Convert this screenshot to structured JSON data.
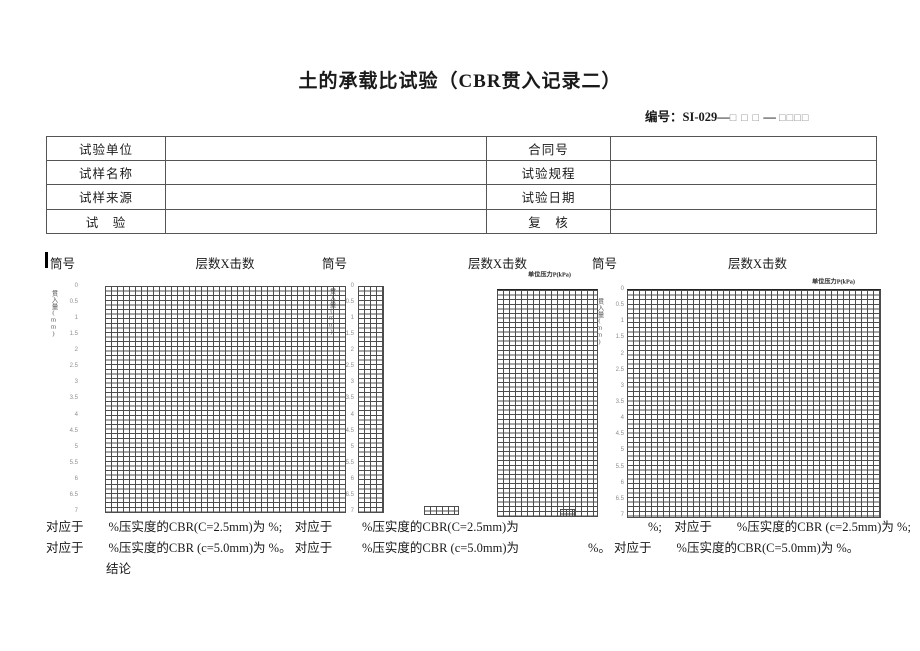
{
  "page": {
    "title": "土的承载比试验（CBR贯入记录二）",
    "doc_no": {
      "label": "编号：",
      "code": "SI-029—",
      "boxes1": "□ □ □",
      "sep": " — ",
      "boxes2": "□□□□"
    }
  },
  "info_table": {
    "rows": [
      {
        "left_label": "试验单位",
        "left_value": "",
        "right_label": "合同号",
        "right_value": ""
      },
      {
        "left_label": "试样名称",
        "left_value": "",
        "right_label": "试验规程",
        "right_value": ""
      },
      {
        "left_label": "试样来源",
        "left_value": "",
        "right_label": "试验日期",
        "right_value": ""
      },
      {
        "left_label": "试　验",
        "left_value": "",
        "right_label": "复　核",
        "right_value": ""
      }
    ]
  },
  "charts": [
    {
      "tube_label": "筒号",
      "header": "层数X击数",
      "y_axis_label": "贯入量(mm)",
      "x_axis_label": "",
      "y_ticks": [
        "0",
        "0.5",
        "1",
        "1.5",
        "2",
        "2.5",
        "3",
        "3.5",
        "4",
        "4.5",
        "5",
        "5.5",
        "6",
        "6.5",
        "7"
      ]
    },
    {
      "tube_label": "筒号",
      "header": "层数X击数",
      "y_axis_label": "贯入量(mm)",
      "x_axis_label": "单位压力P(kPa)",
      "y_ticks": [
        "0",
        "0.5",
        "1",
        "1.5",
        "2",
        "2.5",
        "3",
        "3.5",
        "4",
        "4.5",
        "5",
        "5.5",
        "6",
        "6.5",
        "7"
      ]
    },
    {
      "tube_label": "筒号",
      "header": "层数X击数",
      "y_axis_label": "贯入量(mm)",
      "x_axis_label": "单位压力P(kPa)",
      "y_ticks": [
        "0",
        "0.5",
        "1",
        "1.5",
        "2",
        "2.5",
        "3",
        "3.5",
        "4",
        "4.5",
        "5",
        "5.5",
        "6",
        "6.5",
        "7"
      ]
    }
  ],
  "footer": {
    "row1_left": "对应于　　%压实度的CBR(C=2.5mm)为 %;　对应于",
    "row1_mid": "%压实度的CBR(C=2.5mm)为",
    "row1_right": "%;　对应于　　%压实度的CBR (c=2.5mm)为 %;",
    "row2_left": "对应于　　%压实度的CBR (c=5.0mm)为 %。 对应于",
    "row2_mid": "%压实度的CBR (c=5.0mm)为",
    "row2_right": "%。 对应于　　%压实度的CBR(C=5.0mm)为 %。",
    "conclusion": "结论"
  }
}
